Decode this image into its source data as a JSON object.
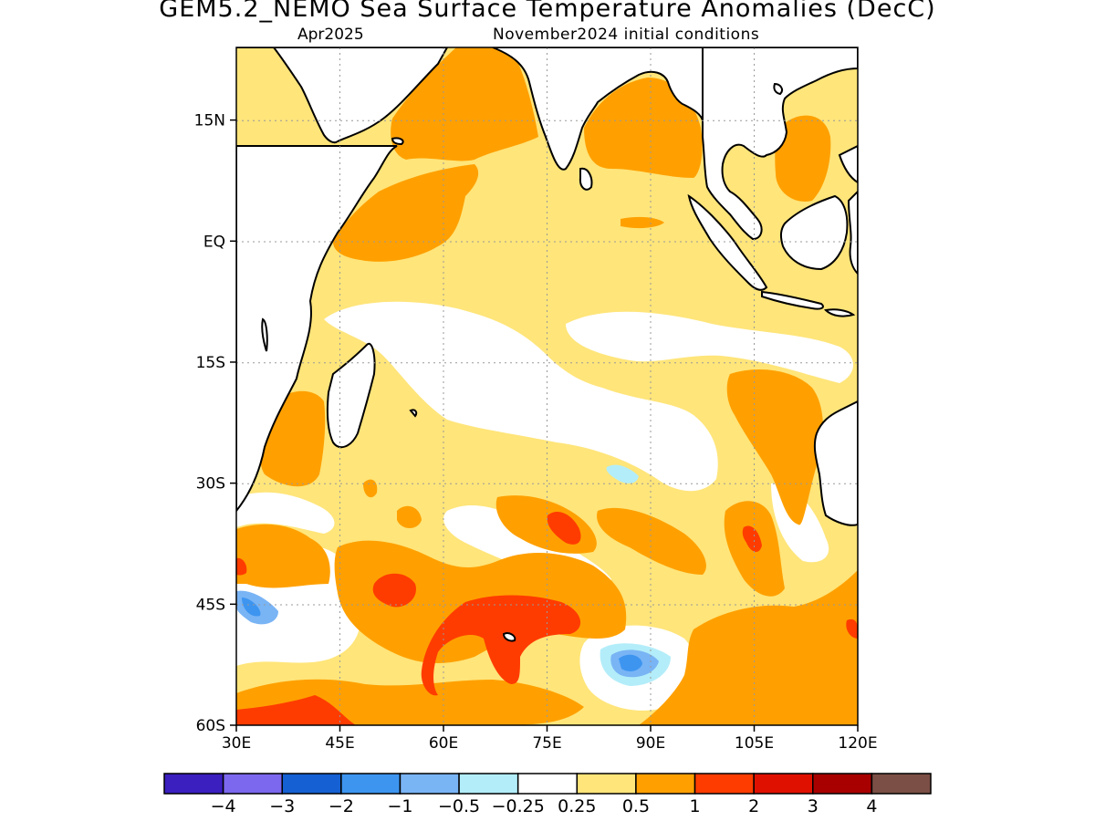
{
  "title": "GEM5.2_NEMO Sea Surface Temperature Anomalies (DecC)",
  "subtitle_left": "Apr2025",
  "subtitle_right": "November2024 initial conditions",
  "y_ticks": [
    {
      "label": "15N",
      "lat": 15
    },
    {
      "label": "EQ",
      "lat": 0
    },
    {
      "label": "15S",
      "lat": -15
    },
    {
      "label": "30S",
      "lat": -30
    },
    {
      "label": "45S",
      "lat": -45
    },
    {
      "label": "60S",
      "lat": -60
    }
  ],
  "x_ticks": [
    {
      "label": "30E",
      "lon": 30
    },
    {
      "label": "45E",
      "lon": 45
    },
    {
      "label": "60E",
      "lon": 60
    },
    {
      "label": "75E",
      "lon": 75
    },
    {
      "label": "90E",
      "lon": 90
    },
    {
      "label": "105E",
      "lon": 105
    },
    {
      "label": "120E",
      "lon": 120
    }
  ],
  "map_extent": {
    "lon": [
      30,
      120
    ],
    "lat": [
      -60,
      24
    ]
  },
  "colorbar": {
    "colors": [
      "#3b1fbf",
      "#7b68ee",
      "#1560d2",
      "#3d95f0",
      "#79b4f5",
      "#b3edf9",
      "#ffffff",
      "#ffe57a",
      "#ffa000",
      "#ff3c00",
      "#e01000",
      "#a80000",
      "#7b4f45"
    ],
    "labels": [
      "−4",
      "−3",
      "−2",
      "−1",
      "−0.5",
      "−0.25",
      "0.25",
      "0.5",
      "1",
      "2",
      "3",
      "4"
    ]
  },
  "palette": {
    "land": "#ffffff",
    "coast": "#000000",
    "grid": "#999999"
  }
}
